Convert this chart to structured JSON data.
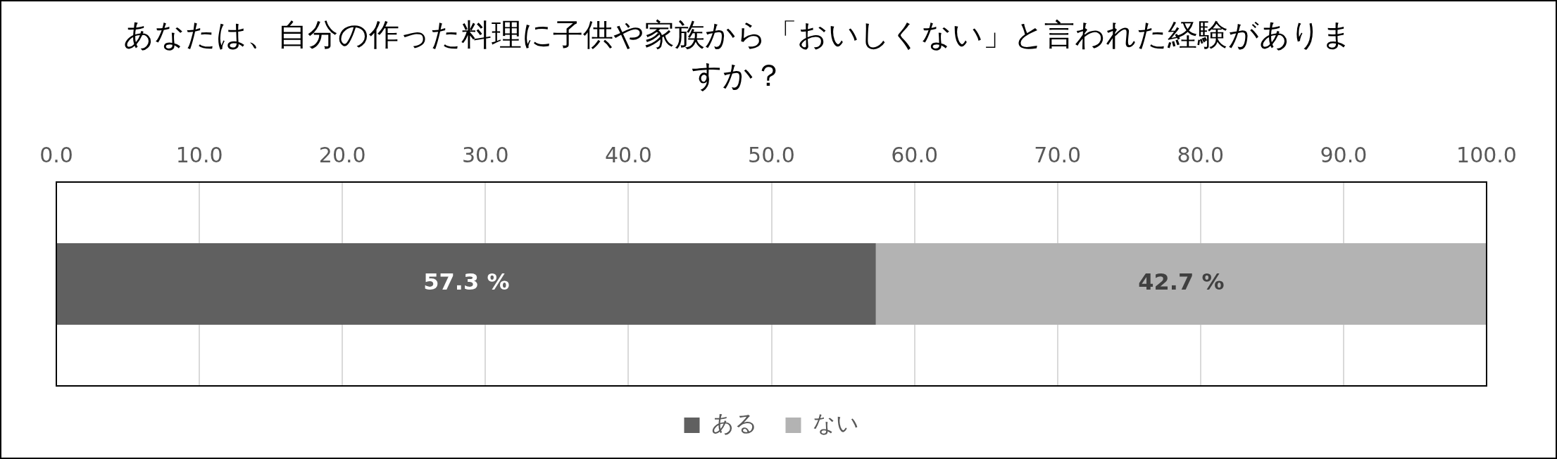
{
  "chart_data": {
    "type": "bar",
    "orientation": "horizontal",
    "stacked": true,
    "title": "あなたは、自分の作った料理に子供や家族から「おいしくない」と言われた経験がありますか？",
    "categories": [
      null
    ],
    "series": [
      {
        "name": "ある",
        "color": "#606060",
        "values": [
          57.3
        ],
        "value_labels": [
          "57.3 %"
        ]
      },
      {
        "name": "ない",
        "color": "#b3b3b3",
        "values": [
          42.7
        ],
        "value_labels": [
          "42.7 %"
        ]
      }
    ],
    "xlim": [
      0,
      100
    ],
    "xticks": [
      {
        "value": 0,
        "label": "0.0"
      },
      {
        "value": 10,
        "label": "10.0"
      },
      {
        "value": 20,
        "label": "20.0"
      },
      {
        "value": 30,
        "label": "30.0"
      },
      {
        "value": 40,
        "label": "40.0"
      },
      {
        "value": 50,
        "label": "50.0"
      },
      {
        "value": 60,
        "label": "60.0"
      },
      {
        "value": 70,
        "label": "70.0"
      },
      {
        "value": 80,
        "label": "80.0"
      },
      {
        "value": 90,
        "label": "90.0"
      },
      {
        "value": 100,
        "label": "100.0"
      }
    ],
    "grid": "x",
    "legend": "bottom"
  }
}
